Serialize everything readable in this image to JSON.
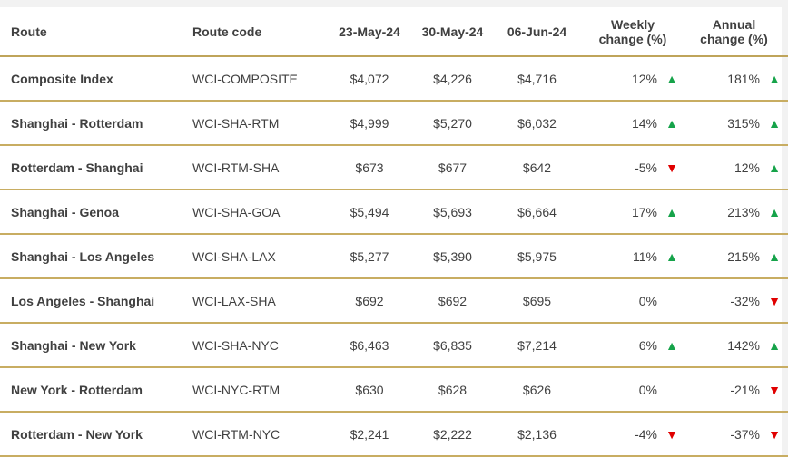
{
  "headers": {
    "route": "Route",
    "code": "Route code",
    "d1": "23-May-24",
    "d2": "30-May-24",
    "d3": "06-Jun-24",
    "weekly_line1": "Weekly",
    "weekly_line2": "change (%)",
    "annual_line1": "Annual",
    "annual_line2": "change (%)"
  },
  "rows": [
    {
      "route": "Composite Index",
      "code": "WCI-COMPOSITE",
      "d1": "$4,072",
      "d2": "$4,226",
      "d3": "$4,716",
      "weekly": "12%",
      "weekly_dir": "up",
      "annual": "181%",
      "annual_dir": "up"
    },
    {
      "route": "Shanghai - Rotterdam",
      "code": "WCI-SHA-RTM",
      "d1": "$4,999",
      "d2": "$5,270",
      "d3": "$6,032",
      "weekly": "14%",
      "weekly_dir": "up",
      "annual": "315%",
      "annual_dir": "up"
    },
    {
      "route": "Rotterdam - Shanghai",
      "code": "WCI-RTM-SHA",
      "d1": "$673",
      "d2": "$677",
      "d3": "$642",
      "weekly": "-5%",
      "weekly_dir": "down",
      "annual": "12%",
      "annual_dir": "up"
    },
    {
      "route": "Shanghai - Genoa",
      "code": "WCI-SHA-GOA",
      "d1": "$5,494",
      "d2": "$5,693",
      "d3": "$6,664",
      "weekly": "17%",
      "weekly_dir": "up",
      "annual": "213%",
      "annual_dir": "up"
    },
    {
      "route": "Shanghai - Los Angeles",
      "code": "WCI-SHA-LAX",
      "d1": "$5,277",
      "d2": "$5,390",
      "d3": "$5,975",
      "weekly": "11%",
      "weekly_dir": "up",
      "annual": "215%",
      "annual_dir": "up"
    },
    {
      "route": "Los Angeles - Shanghai",
      "code": "WCI-LAX-SHA",
      "d1": "$692",
      "d2": "$692",
      "d3": "$695",
      "weekly": "0%",
      "weekly_dir": "none",
      "annual": "-32%",
      "annual_dir": "down"
    },
    {
      "route": "Shanghai - New York",
      "code": "WCI-SHA-NYC",
      "d1": "$6,463",
      "d2": "$6,835",
      "d3": "$7,214",
      "weekly": "6%",
      "weekly_dir": "up",
      "annual": "142%",
      "annual_dir": "up"
    },
    {
      "route": "New York - Rotterdam",
      "code": "WCI-NYC-RTM",
      "d1": "$630",
      "d2": "$628",
      "d3": "$626",
      "weekly": "0%",
      "weekly_dir": "none",
      "annual": "-21%",
      "annual_dir": "down"
    },
    {
      "route": "Rotterdam - New York",
      "code": "WCI-RTM-NYC",
      "d1": "$2,241",
      "d2": "$2,222",
      "d3": "$2,136",
      "weekly": "-4%",
      "weekly_dir": "down",
      "annual": "-37%",
      "annual_dir": "down"
    }
  ],
  "colors": {
    "up": "#16a34a",
    "down": "#e00000",
    "rule": "#c8ad62"
  },
  "icons": {
    "up": "triangle-up-icon",
    "down": "triangle-down-icon"
  }
}
